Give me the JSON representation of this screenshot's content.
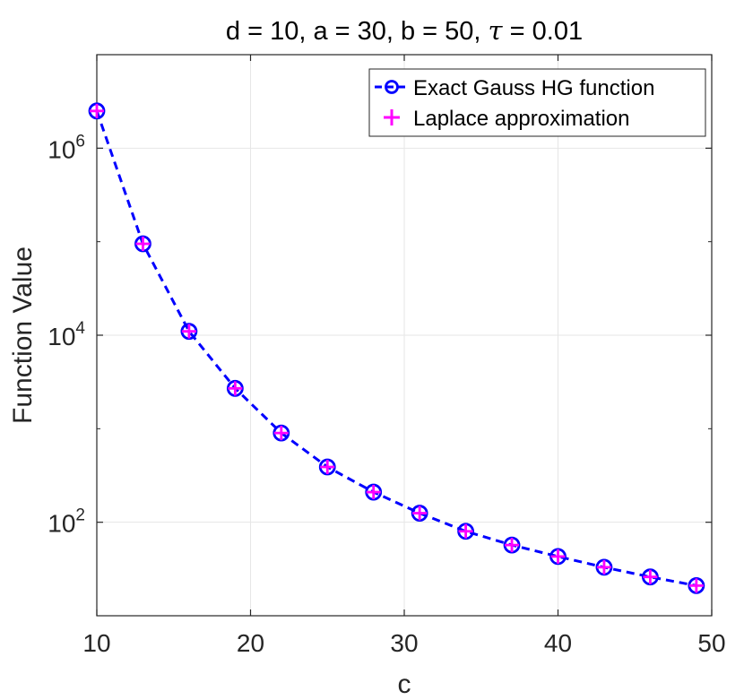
{
  "chart_data": {
    "type": "line",
    "title": "d = 10, a = 30, b = 50, τ = 0.01",
    "title_prefix": "d = 10, a = 30, b = 50, ",
    "title_symbol": "τ",
    "title_suffix": " = 0.01",
    "xlabel": "c",
    "ylabel": "Function Value",
    "xlim": [
      10,
      50
    ],
    "ylim_log10": [
      1,
      7
    ],
    "yscale": "log",
    "grid": true,
    "legend_position": "top-right",
    "x_ticks": [
      10,
      20,
      30,
      40,
      50
    ],
    "x_tick_labels": [
      "10",
      "20",
      "30",
      "40",
      "50"
    ],
    "y_ticks_log10": [
      2,
      4,
      6
    ],
    "y_tick_bases": [
      "10",
      "10",
      "10"
    ],
    "y_tick_exponents": [
      "2",
      "4",
      "6"
    ],
    "x": [
      10,
      13,
      16,
      19,
      22,
      25,
      28,
      31,
      34,
      37,
      40,
      43,
      46,
      49
    ],
    "series": [
      {
        "name": "Exact Gauss HG function",
        "style": "dashed-circle",
        "color": "#0000ff",
        "values": [
          2500000,
          95000,
          11000,
          2700,
          900,
          390,
          210,
          125,
          80,
          57,
          43,
          33,
          26,
          21
        ]
      },
      {
        "name": "Laplace approximation",
        "style": "plus",
        "color": "#ff00ff",
        "values": [
          2500000,
          95000,
          11000,
          2700,
          900,
          390,
          210,
          125,
          80,
          57,
          43,
          33,
          26,
          21
        ]
      }
    ]
  }
}
